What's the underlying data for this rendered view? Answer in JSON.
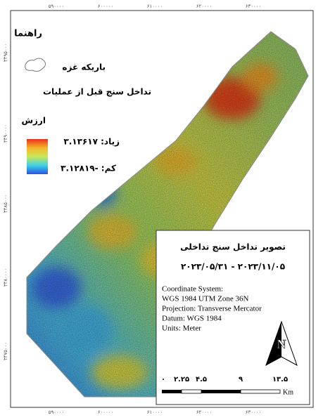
{
  "frame": {
    "top_ticks": [
      "۵۹۰۰۰۰",
      "۶۰۰۰۰۰",
      "۶۱۰۰۰۰",
      "۶۲۰۰۰۰",
      "۶۳۰۰۰۰"
    ],
    "bottom_ticks": [
      "۵۹۰۰۰۰",
      "۶۰۰۰۰۰",
      "۶۱۰۰۰۰",
      "۶۲۰۰۰۰",
      "۶۳۰۰۰۰"
    ],
    "left_ticks": [
      "۳۴۹۵۰۰۰",
      "۳۴۹۰۰۰۰",
      "۳۴۸۵۰۰۰",
      "۳۴۸۰۰۰۰",
      "۳۴۷۵۰۰۰"
    ]
  },
  "legend": {
    "title": "راهنما",
    "boundary": "باریکه غزه",
    "layer": "تداخل سنج قبل از عملیات",
    "value_heading": "ارزش",
    "high": "زیاد: ۳.۱۳۶۱۷",
    "low": "کم: -۳.۱۲۸۱۹"
  },
  "info": {
    "title": "تصویر تداخل سنج تداخلی",
    "dates": "۲۰۲۳/۰۵/۳۱ - ۲۰۲۳/۱۱/۰۵",
    "lines": [
      "Coordinate System:",
      "WGS 1984 UTM Zone 36N",
      "Projection: Transverse Mercator",
      "Datum: WGS 1984",
      "Units: Meter"
    ],
    "north": "N",
    "scale_labels": [
      "۰",
      "۲.۲۵",
      "۴.۵",
      "۹",
      "۱۳.۵"
    ],
    "scale_unit": "Km"
  }
}
